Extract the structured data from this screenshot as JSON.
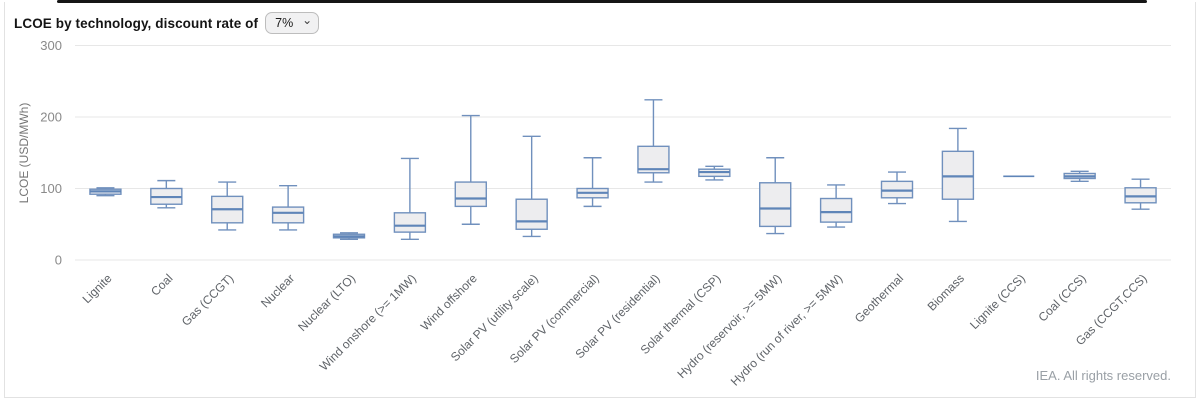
{
  "header": {
    "title": "LCOE by technology, discount rate of",
    "discount_select": {
      "value": "7%",
      "chevron_icon": "⌄"
    }
  },
  "footer": {
    "attribution": "IEA. All rights reserved."
  },
  "chart_data": {
    "type": "boxplot",
    "title": "LCOE by technology, discount rate of 7%",
    "xlabel": "",
    "ylabel": "LCOE (USD/MWh)",
    "ylim": [
      0,
      300
    ],
    "yticks": [
      0,
      100,
      200,
      300
    ],
    "grid": true,
    "legend_position": "none",
    "unit": "USD/MWh",
    "categories": [
      "Lignite",
      "Coal",
      "Gas (CCGT)",
      "Nuclear",
      "Nuclear (LTO)",
      "Wind onshore (>= 1MW)",
      "Wind offshore",
      "Solar PV (utility scale)",
      "Solar PV (commercial)",
      "Solar PV (residential)",
      "Solar thermal (CSP)",
      "Hydro (reservoir, >= 5MW)",
      "Hydro (run of river, >= 5MW)",
      "Geothermal",
      "Biomass",
      "Lignite (CCS)",
      "Coal (CCS)",
      "Gas (CCGT,CCS)"
    ],
    "values": [
      {
        "min": 90,
        "q1": 92,
        "median": 96,
        "q3": 99,
        "max": 101
      },
      {
        "min": 73,
        "q1": 78,
        "median": 88,
        "q3": 100,
        "max": 111
      },
      {
        "min": 42,
        "q1": 52,
        "median": 71,
        "q3": 89,
        "max": 109
      },
      {
        "min": 42,
        "q1": 52,
        "median": 66,
        "q3": 74,
        "max": 104
      },
      {
        "min": 29,
        "q1": 31,
        "median": 33,
        "q3": 36,
        "max": 38
      },
      {
        "min": 29,
        "q1": 39,
        "median": 48,
        "q3": 66,
        "max": 142
      },
      {
        "min": 50,
        "q1": 75,
        "median": 86,
        "q3": 109,
        "max": 202
      },
      {
        "min": 33,
        "q1": 43,
        "median": 54,
        "q3": 85,
        "max": 173
      },
      {
        "min": 75,
        "q1": 87,
        "median": 94,
        "q3": 100,
        "max": 143
      },
      {
        "min": 109,
        "q1": 122,
        "median": 127,
        "q3": 159,
        "max": 224
      },
      {
        "min": 112,
        "q1": 117,
        "median": 123,
        "q3": 127,
        "max": 131
      },
      {
        "min": 37,
        "q1": 47,
        "median": 72,
        "q3": 108,
        "max": 143
      },
      {
        "min": 46,
        "q1": 53,
        "median": 67,
        "q3": 86,
        "max": 105
      },
      {
        "min": 79,
        "q1": 87,
        "median": 97,
        "q3": 110,
        "max": 123
      },
      {
        "min": 54,
        "q1": 85,
        "median": 117,
        "q3": 152,
        "max": 184
      },
      {
        "min": 117,
        "q1": 117,
        "median": 117,
        "q3": 117,
        "max": 117
      },
      {
        "min": 110,
        "q1": 114,
        "median": 117,
        "q3": 121,
        "max": 124
      },
      {
        "min": 71,
        "q1": 80,
        "median": 89,
        "q3": 101,
        "max": 113
      }
    ],
    "colors": {
      "box_fill": "#ededef",
      "box_stroke": "#7090bd",
      "median_stroke": "#5f85b8",
      "gridline": "#e7e7e7",
      "axis_text": "#8a8a8a",
      "axis_title_text": "#757575",
      "category_text": "#5f6368"
    }
  }
}
